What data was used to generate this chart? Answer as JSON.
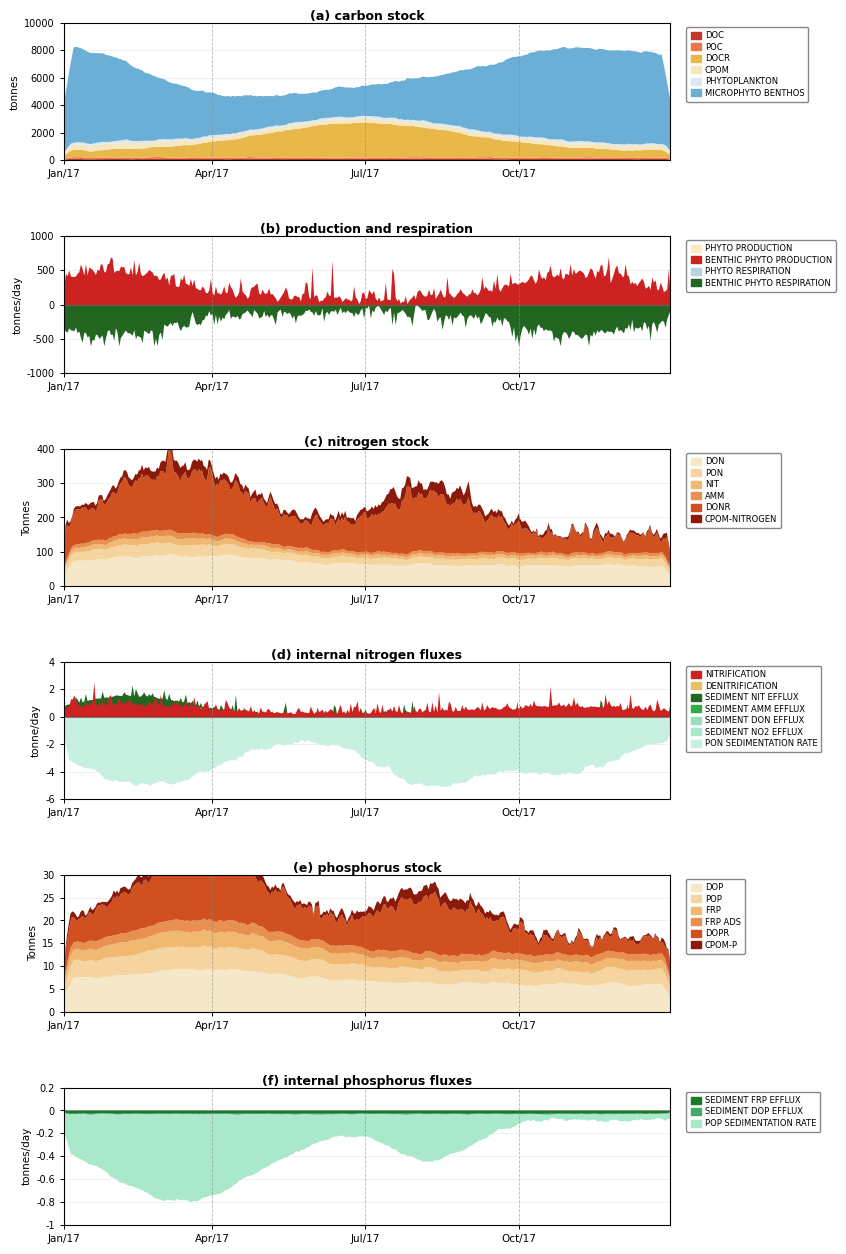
{
  "title_a": "(a) carbon stock",
  "title_b": "(b) production and respiration",
  "title_c": "(c) nitrogen stock",
  "title_d": "(d) internal nitrogen fluxes",
  "title_e": "(e) phosphorus stock",
  "title_f": "(f) internal phosphorus fluxes",
  "panel_a": {
    "ylabel": "tonnes",
    "ylim": [
      0,
      10000
    ],
    "yticks": [
      0,
      2000,
      4000,
      6000,
      8000,
      10000
    ],
    "colors": {
      "DOC": "#c0392b",
      "POC": "#e8784a",
      "DOCR": "#e8b84b",
      "CPOM": "#f5e8c0",
      "PHYTOPLANKTON": "#dce9f0",
      "MICROPHYTO_BENTHOS": "#6baed6"
    },
    "legend_labels": [
      "DOC",
      "POC",
      "DOCR",
      "CPOM",
      "PHYTOPLANKTON",
      "MICROPHYTO BENTHOS"
    ]
  },
  "panel_b": {
    "ylabel": "tonnes/day",
    "ylim": [
      -1000,
      1000
    ],
    "yticks": [
      -1000,
      -500,
      0,
      500,
      1000
    ],
    "colors": {
      "PHYTO_PRODUCTION": "#fde8c8",
      "BENTHIC_PHYTO_PRODUCTION": "#cc2222",
      "PHYTO_RESPIRATION": "#b8d4e0",
      "BENTHIC_PHYTO_RESPIRATION": "#226622"
    },
    "legend_labels": [
      "PHYTO PRODUCTION",
      "BENTHIC PHYTO PRODUCTION",
      "PHYTO RESPIRATION",
      "BENTHIC PHYTO RESPIRATION"
    ]
  },
  "panel_c": {
    "ylabel": "Tonnes",
    "ylim": [
      0,
      400
    ],
    "yticks": [
      0,
      100,
      200,
      300,
      400
    ],
    "colors": {
      "DON": "#f5e8c8",
      "PON": "#f5d4a0",
      "NIT": "#f0b870",
      "AMM": "#e89050",
      "DONR": "#d05020",
      "CPOM_NITROGEN": "#8b1a0a"
    },
    "legend_labels": [
      "DON",
      "PON",
      "NIT",
      "AMM",
      "DONR",
      "CPOM-NITROGEN"
    ]
  },
  "panel_d": {
    "ylabel": "tonne/day",
    "ylim": [
      -6,
      4
    ],
    "yticks": [
      -6,
      -4,
      -2,
      0,
      2,
      4
    ],
    "colors": {
      "NITRIFICATION": "#cc2222",
      "DENITRIFICATION": "#e8c060",
      "SEDIMENT_NIT_EFFLUX": "#226622",
      "SEDIMENT_AMM_EFFLUX": "#33aa44",
      "SEDIMENT_DON_EFFLUX": "#99ddbb",
      "SEDIMENT_NO2_EFFLUX": "#aae8cc",
      "PON_SEDIMENTATION_RATE": "#c8f0e0"
    },
    "legend_labels": [
      "NITRIFICATION",
      "DENITRIFICATION",
      "SEDIMENT NIT EFFLUX",
      "SEDIMENT AMM EFFLUX",
      "SEDIMENT DON EFFLUX",
      "SEDIMENT NO2 EFFLUX",
      "PON SEDIMENTATION RATE"
    ]
  },
  "panel_e": {
    "ylabel": "Tonnes",
    "ylim": [
      0,
      30
    ],
    "yticks": [
      0,
      5,
      10,
      15,
      20,
      25,
      30
    ],
    "colors": {
      "DOP": "#f5e8c8",
      "POP": "#f5d4a0",
      "FRP": "#f0b870",
      "FRP_ADS": "#e89050",
      "DOPR": "#d05020",
      "CPOM_P": "#8b1a0a"
    },
    "legend_labels": [
      "DOP",
      "POP",
      "FRP",
      "FRP ADS",
      "DOPR",
      "CPOM-P"
    ]
  },
  "panel_f": {
    "ylabel": "tonnes/day",
    "ylim": [
      -1,
      0.2
    ],
    "yticks": [
      -1.0,
      -0.8,
      -0.6,
      -0.4,
      -0.2,
      0.0,
      0.2
    ],
    "colors": {
      "SEDIMENT_FRP_EFFLUX": "#1a7a2a",
      "SEDIMENT_DOP_EFFLUX": "#44aa66",
      "POP_SEDIMENTATION_RATE": "#aae8cc"
    },
    "legend_labels": [
      "SEDIMENT FRP EFFLUX",
      "SEDIMENT DOP EFFLUX",
      "POP SEDIMENTATION RATE"
    ]
  },
  "x_tick_labels": [
    "Jan/17",
    "Apr/17",
    "Jul/17",
    "Oct/17"
  ],
  "n_days": 365,
  "figure_bg": "#ffffff"
}
